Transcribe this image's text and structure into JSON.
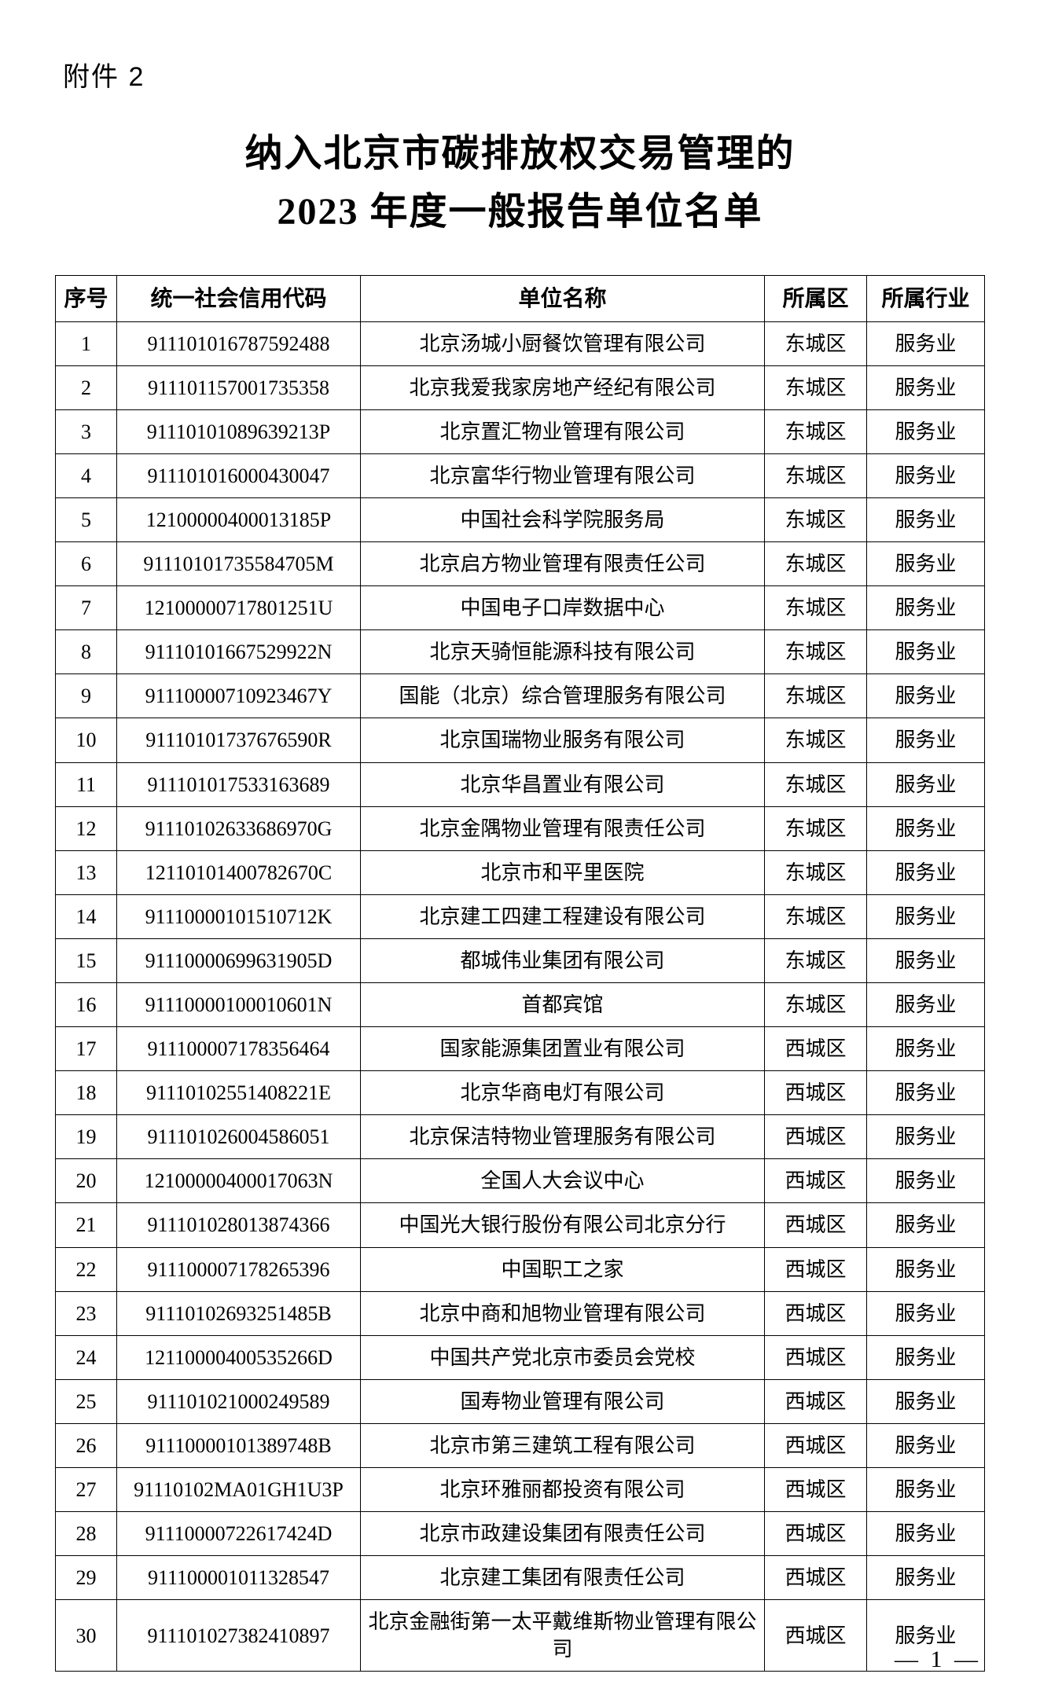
{
  "attachment_label": "附件 2",
  "title_line1": "纳入北京市碳排放权交易管理的",
  "title_line2": "2023 年度一般报告单位名单",
  "page_number": "— 1 —",
  "columns": {
    "seq": "序号",
    "code": "统一社会信用代码",
    "name": "单位名称",
    "district": "所属区",
    "industry": "所属行业"
  },
  "rows": [
    {
      "seq": "1",
      "code": "911101016787592488",
      "name": "北京汤城小厨餐饮管理有限公司",
      "district": "东城区",
      "industry": "服务业"
    },
    {
      "seq": "2",
      "code": "911101157001735358",
      "name": "北京我爱我家房地产经纪有限公司",
      "district": "东城区",
      "industry": "服务业"
    },
    {
      "seq": "3",
      "code": "91110101089639213P",
      "name": "北京置汇物业管理有限公司",
      "district": "东城区",
      "industry": "服务业"
    },
    {
      "seq": "4",
      "code": "911101016000430047",
      "name": "北京富华行物业管理有限公司",
      "district": "东城区",
      "industry": "服务业"
    },
    {
      "seq": "5",
      "code": "12100000400013185P",
      "name": "中国社会科学院服务局",
      "district": "东城区",
      "industry": "服务业"
    },
    {
      "seq": "6",
      "code": "91110101735584705M",
      "name": "北京启方物业管理有限责任公司",
      "district": "东城区",
      "industry": "服务业"
    },
    {
      "seq": "7",
      "code": "12100000717801251U",
      "name": "中国电子口岸数据中心",
      "district": "东城区",
      "industry": "服务业"
    },
    {
      "seq": "8",
      "code": "91110101667529922N",
      "name": "北京天骑恒能源科技有限公司",
      "district": "东城区",
      "industry": "服务业"
    },
    {
      "seq": "9",
      "code": "91110000710923467Y",
      "name": "国能（北京）综合管理服务有限公司",
      "district": "东城区",
      "industry": "服务业"
    },
    {
      "seq": "10",
      "code": "91110101737676590R",
      "name": "北京国瑞物业服务有限公司",
      "district": "东城区",
      "industry": "服务业"
    },
    {
      "seq": "11",
      "code": "911101017533163689",
      "name": "北京华昌置业有限公司",
      "district": "东城区",
      "industry": "服务业"
    },
    {
      "seq": "12",
      "code": "91110102633686970G",
      "name": "北京金隅物业管理有限责任公司",
      "district": "东城区",
      "industry": "服务业"
    },
    {
      "seq": "13",
      "code": "12110101400782670C",
      "name": "北京市和平里医院",
      "district": "东城区",
      "industry": "服务业"
    },
    {
      "seq": "14",
      "code": "91110000101510712K",
      "name": "北京建工四建工程建设有限公司",
      "district": "东城区",
      "industry": "服务业"
    },
    {
      "seq": "15",
      "code": "91110000699631905D",
      "name": "都城伟业集团有限公司",
      "district": "东城区",
      "industry": "服务业"
    },
    {
      "seq": "16",
      "code": "91110000100010601N",
      "name": "首都宾馆",
      "district": "东城区",
      "industry": "服务业"
    },
    {
      "seq": "17",
      "code": "911100007178356464",
      "name": "国家能源集团置业有限公司",
      "district": "西城区",
      "industry": "服务业"
    },
    {
      "seq": "18",
      "code": "91110102551408221E",
      "name": "北京华商电灯有限公司",
      "district": "西城区",
      "industry": "服务业"
    },
    {
      "seq": "19",
      "code": "911101026004586051",
      "name": "北京保洁特物业管理服务有限公司",
      "district": "西城区",
      "industry": "服务业"
    },
    {
      "seq": "20",
      "code": "12100000400017063N",
      "name": "全国人大会议中心",
      "district": "西城区",
      "industry": "服务业"
    },
    {
      "seq": "21",
      "code": "911101028013874366",
      "name": "中国光大银行股份有限公司北京分行",
      "district": "西城区",
      "industry": "服务业"
    },
    {
      "seq": "22",
      "code": "911100007178265396",
      "name": "中国职工之家",
      "district": "西城区",
      "industry": "服务业"
    },
    {
      "seq": "23",
      "code": "91110102693251485B",
      "name": "北京中商和旭物业管理有限公司",
      "district": "西城区",
      "industry": "服务业"
    },
    {
      "seq": "24",
      "code": "12110000400535266D",
      "name": "中国共产党北京市委员会党校",
      "district": "西城区",
      "industry": "服务业"
    },
    {
      "seq": "25",
      "code": "911101021000249589",
      "name": "国寿物业管理有限公司",
      "district": "西城区",
      "industry": "服务业"
    },
    {
      "seq": "26",
      "code": "91110000101389748B",
      "name": "北京市第三建筑工程有限公司",
      "district": "西城区",
      "industry": "服务业"
    },
    {
      "seq": "27",
      "code": "91110102MA01GH1U3P",
      "name": "北京环雅丽都投资有限公司",
      "district": "西城区",
      "industry": "服务业"
    },
    {
      "seq": "28",
      "code": "91110000722617424D",
      "name": "北京市政建设集团有限责任公司",
      "district": "西城区",
      "industry": "服务业"
    },
    {
      "seq": "29",
      "code": "911100001011328547",
      "name": "北京建工集团有限责任公司",
      "district": "西城区",
      "industry": "服务业"
    },
    {
      "seq": "30",
      "code": "911101027382410897",
      "name": "北京金融街第一太平戴维斯物业管理有限公司",
      "district": "西城区",
      "industry": "服务业"
    }
  ]
}
